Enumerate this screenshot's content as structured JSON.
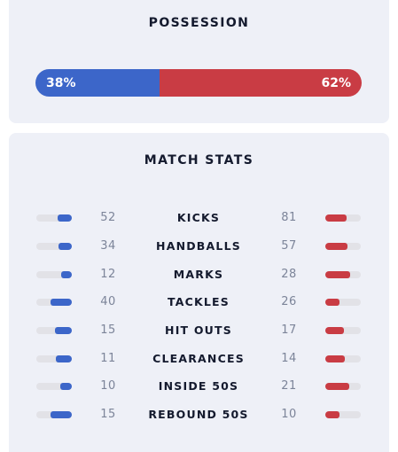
{
  "possession": {
    "title": "POSSESSION",
    "home_label": "38%",
    "away_label": "62%",
    "home_pct": 38,
    "away_pct": 62,
    "home_color": "#3c66c9",
    "away_color": "#c93c44"
  },
  "match_stats": {
    "title": "MATCH STATS",
    "rows": [
      {
        "label": "KICKS",
        "home": "52",
        "away": "81",
        "home_fill": 0.39,
        "away_fill": 0.61
      },
      {
        "label": "HANDBALLS",
        "home": "34",
        "away": "57",
        "home_fill": 0.37,
        "away_fill": 0.63
      },
      {
        "label": "MARKS",
        "home": "12",
        "away": "28",
        "home_fill": 0.3,
        "away_fill": 0.7
      },
      {
        "label": "TACKLES",
        "home": "40",
        "away": "26",
        "home_fill": 0.61,
        "away_fill": 0.39
      },
      {
        "label": "HIT OUTS",
        "home": "15",
        "away": "17",
        "home_fill": 0.47,
        "away_fill": 0.53
      },
      {
        "label": "CLEARANCES",
        "home": "11",
        "away": "14",
        "home_fill": 0.44,
        "away_fill": 0.56
      },
      {
        "label": "INSIDE 50S",
        "home": "10",
        "away": "21",
        "home_fill": 0.32,
        "away_fill": 0.68
      },
      {
        "label": "REBOUND 50S",
        "home": "15",
        "away": "10",
        "home_fill": 0.6,
        "away_fill": 0.4
      }
    ]
  }
}
